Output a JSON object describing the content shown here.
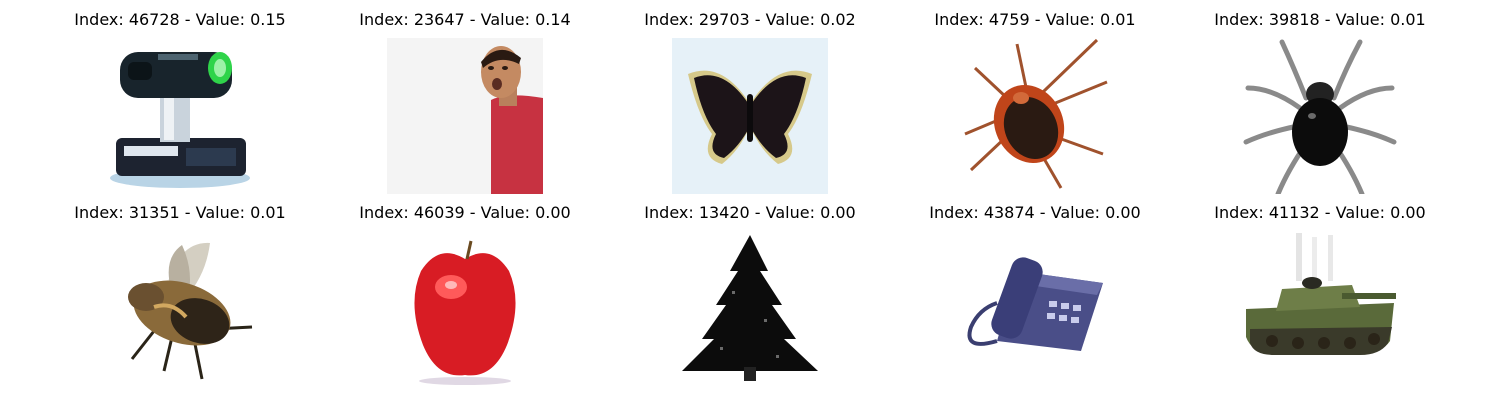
{
  "figure": {
    "panels": [
      {
        "index_label": "Index: 46728 - Value: 0.15",
        "icon": "projector-icon"
      },
      {
        "index_label": "Index: 23647 - Value: 0.14",
        "icon": "person-icon"
      },
      {
        "index_label": "Index: 29703 - Value: 0.02",
        "icon": "butterfly-icon"
      },
      {
        "index_label": "Index: 4759 - Value: 0.01",
        "icon": "cockroach-icon"
      },
      {
        "index_label": "Index: 39818 - Value: 0.01",
        "icon": "spider-icon"
      },
      {
        "index_label": "Index: 31351 - Value: 0.01",
        "icon": "bee-icon"
      },
      {
        "index_label": "Index: 46039 - Value: 0.00",
        "icon": "apple-icon"
      },
      {
        "index_label": "Index: 13420 - Value: 0.00",
        "icon": "tree-icon"
      },
      {
        "index_label": "Index: 43874 - Value: 0.00",
        "icon": "telephone-icon"
      },
      {
        "index_label": "Index: 41132 - Value: 0.00",
        "icon": "tank-icon"
      }
    ]
  }
}
